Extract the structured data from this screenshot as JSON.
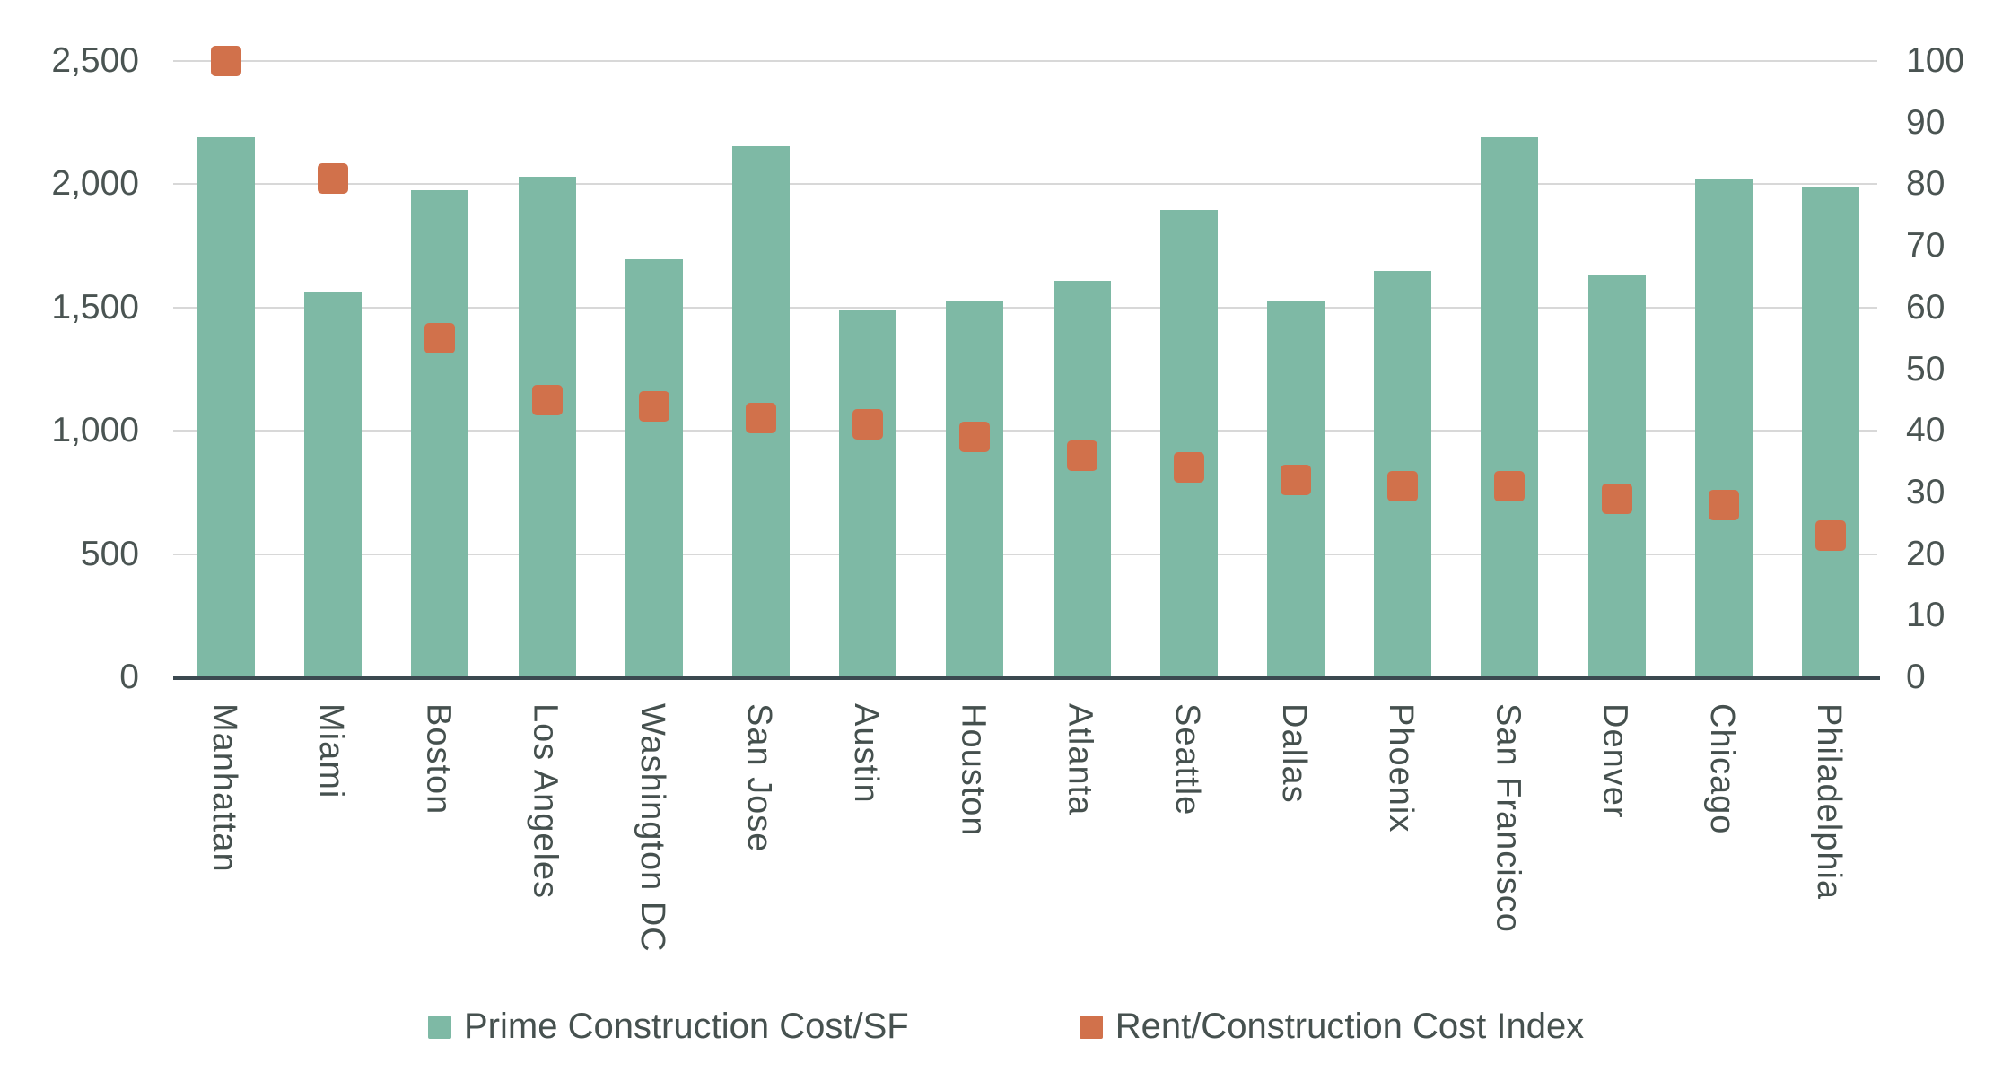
{
  "chart_data": {
    "type": "bar",
    "subtype": "combo-bar-with-square-scatter",
    "title": "",
    "categories": [
      "Manhattan",
      "Miami",
      "Boston",
      "Los Angeles",
      "Washington DC",
      "San Jose",
      "Austin",
      "Houston",
      "Atlanta",
      "Seattle",
      "Dallas",
      "Phoenix",
      "San Francisco",
      "Denver",
      "Chicago",
      "Philadelphia"
    ],
    "series": [
      {
        "name": "Prime Construction Cost/SF",
        "type": "bar",
        "axis": "left",
        "color": "#7eb9a5",
        "values": [
          2190,
          1565,
          1975,
          2030,
          1695,
          2155,
          1490,
          1530,
          1610,
          1895,
          1530,
          1650,
          2190,
          1635,
          2020,
          1990
        ]
      },
      {
        "name": "Rent/Construction Cost Index",
        "type": "scatter-square",
        "axis": "right",
        "color": "#d1714b",
        "values": [
          100,
          81,
          55,
          45,
          44,
          42,
          41,
          39,
          36,
          34,
          32,
          31,
          31,
          29,
          28,
          23
        ]
      }
    ],
    "left_axis": {
      "min": 0,
      "max": 2500,
      "step": 500,
      "ticks": [
        {
          "value": 0,
          "label": "0"
        },
        {
          "value": 500,
          "label": "500"
        },
        {
          "value": 1000,
          "label": "1,000"
        },
        {
          "value": 1500,
          "label": "1,500"
        },
        {
          "value": 2000,
          "label": "2,000"
        },
        {
          "value": 2500,
          "label": "2,500"
        }
      ]
    },
    "right_axis": {
      "min": 0,
      "max": 100,
      "step": 10,
      "ticks": [
        {
          "value": 0,
          "label": "0"
        },
        {
          "value": 10,
          "label": "10"
        },
        {
          "value": 20,
          "label": "20"
        },
        {
          "value": 30,
          "label": "30"
        },
        {
          "value": 40,
          "label": "40"
        },
        {
          "value": 50,
          "label": "50"
        },
        {
          "value": 60,
          "label": "60"
        },
        {
          "value": 70,
          "label": "70"
        },
        {
          "value": 80,
          "label": "80"
        },
        {
          "value": 90,
          "label": "90"
        },
        {
          "value": 100,
          "label": "100"
        }
      ]
    },
    "grid": "horizontal-at-left-ticks",
    "legend_position": "bottom",
    "colors": {
      "bar": "#7eb9a5",
      "marker": "#d1714b",
      "gridline": "#d8d8d8",
      "axis_line": "#3b4950",
      "text": "#46514f",
      "background": "#ffffff"
    }
  },
  "legend": {
    "items": [
      {
        "label": "Prime Construction Cost/SF"
      },
      {
        "label": "Rent/Construction Cost Index"
      }
    ]
  }
}
